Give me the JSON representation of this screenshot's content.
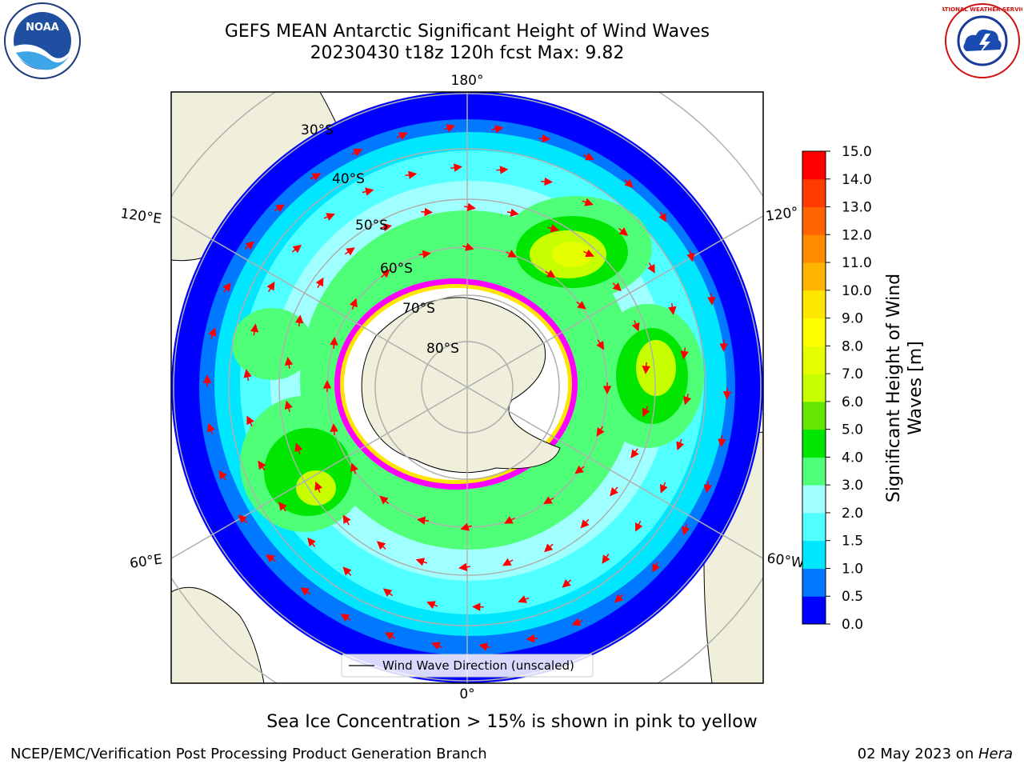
{
  "title_line1": "GEFS MEAN Antarctic Significant Height of Wind Waves",
  "title_line2": "20230430 t18z 120h fcst   Max: 9.82",
  "map": {
    "lon_labels": [
      "180°",
      "120°E",
      "120°",
      "60°E",
      "60°W",
      "0°"
    ],
    "lat_labels": [
      "30°S",
      "40°S",
      "50°S",
      "60°S",
      "70°S",
      "80°S"
    ],
    "legend_label": "Wind Wave Direction (unscaled)",
    "ocean_outer_color": "#0000ff",
    "land_color": "#efefdb"
  },
  "colorbar": {
    "label": "Significant Height of Wind Waves [m]",
    "ticks": [
      "0.0",
      "0.5",
      "1.0",
      "1.5",
      "2.0",
      "3.0",
      "4.0",
      "5.0",
      "6.0",
      "7.0",
      "8.0",
      "9.0",
      "10.0",
      "11.0",
      "12.0",
      "13.0",
      "14.0",
      "15.0"
    ],
    "colors": [
      "#0000ff",
      "#0078ff",
      "#00e6ff",
      "#50ffff",
      "#a0ffff",
      "#50ff78",
      "#00e600",
      "#64e600",
      "#c8ff00",
      "#e6ff00",
      "#ffff00",
      "#ffe600",
      "#ffb400",
      "#ff8c00",
      "#ff6400",
      "#ff3c00",
      "#ff0000"
    ]
  },
  "caption": "Sea Ice Concentration > 15% is shown in pink to yellow",
  "footer_left": "NCEP/EMC/Verification Post Processing Product Generation Branch",
  "footer_date": "02 May 2023 on ",
  "footer_host": "Hera",
  "logos": {
    "noaa_text": "NOAA",
    "nws_text": "NATIONAL WEATHER SERVICE"
  }
}
